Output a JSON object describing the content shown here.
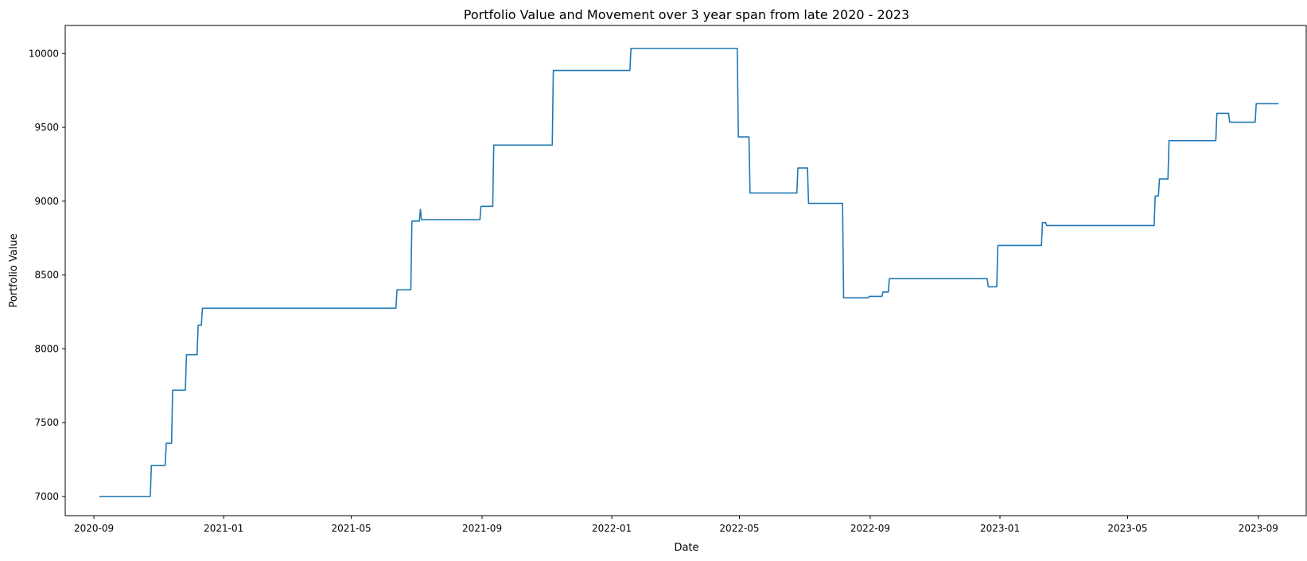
{
  "chart_data": {
    "type": "line",
    "title": "Portfolio Value and Movement over 3 year span from late 2020 - 2023",
    "xlabel": "Date",
    "ylabel": "Portfolio Value",
    "x_axis_type": "date",
    "xlim": [
      "2020-08-05",
      "2023-10-16"
    ],
    "ylim": [
      6870,
      10190
    ],
    "grid": false,
    "line_color": "#1f77b4",
    "x_ticks": [
      {
        "date": "2020-09-01",
        "label": "2020-09"
      },
      {
        "date": "2021-01-01",
        "label": "2021-01"
      },
      {
        "date": "2021-05-01",
        "label": "2021-05"
      },
      {
        "date": "2021-09-01",
        "label": "2021-09"
      },
      {
        "date": "2022-01-01",
        "label": "2022-01"
      },
      {
        "date": "2022-05-01",
        "label": "2022-05"
      },
      {
        "date": "2022-09-01",
        "label": "2022-09"
      },
      {
        "date": "2023-01-01",
        "label": "2023-01"
      },
      {
        "date": "2023-05-01",
        "label": "2023-05"
      },
      {
        "date": "2023-09-01",
        "label": "2023-09"
      }
    ],
    "y_ticks": [
      7000,
      7500,
      8000,
      8500,
      9000,
      9500,
      10000
    ],
    "series": [
      {
        "name": "",
        "points": [
          [
            "2020-09-06",
            7000
          ],
          [
            "2020-10-24",
            7000
          ],
          [
            "2020-10-25",
            7210
          ],
          [
            "2020-11-07",
            7210
          ],
          [
            "2020-11-08",
            7360
          ],
          [
            "2020-11-13",
            7360
          ],
          [
            "2020-11-14",
            7720
          ],
          [
            "2020-11-26",
            7720
          ],
          [
            "2020-11-27",
            7960
          ],
          [
            "2020-12-07",
            7960
          ],
          [
            "2020-12-08",
            8160
          ],
          [
            "2020-12-11",
            8160
          ],
          [
            "2020-12-12",
            8275
          ],
          [
            "2021-06-12",
            8275
          ],
          [
            "2021-06-13",
            8400
          ],
          [
            "2021-06-26",
            8400
          ],
          [
            "2021-06-27",
            8865
          ],
          [
            "2021-07-04",
            8865
          ],
          [
            "2021-07-05",
            8945
          ],
          [
            "2021-07-06",
            8875
          ],
          [
            "2021-08-30",
            8875
          ],
          [
            "2021-08-31",
            8965
          ],
          [
            "2021-09-11",
            8965
          ],
          [
            "2021-09-12",
            9380
          ],
          [
            "2021-11-06",
            9380
          ],
          [
            "2021-11-07",
            9885
          ],
          [
            "2022-01-18",
            9885
          ],
          [
            "2022-01-19",
            10035
          ],
          [
            "2022-04-29",
            10035
          ],
          [
            "2022-04-30",
            9435
          ],
          [
            "2022-05-10",
            9435
          ],
          [
            "2022-05-11",
            9055
          ],
          [
            "2022-06-24",
            9055
          ],
          [
            "2022-06-25",
            9225
          ],
          [
            "2022-07-04",
            9225
          ],
          [
            "2022-07-05",
            8985
          ],
          [
            "2022-08-06",
            8985
          ],
          [
            "2022-08-07",
            8345
          ],
          [
            "2022-08-30",
            8345
          ],
          [
            "2022-08-31",
            8355
          ],
          [
            "2022-09-12",
            8355
          ],
          [
            "2022-09-13",
            8385
          ],
          [
            "2022-09-18",
            8385
          ],
          [
            "2022-09-19",
            8475
          ],
          [
            "2022-12-20",
            8475
          ],
          [
            "2022-12-21",
            8420
          ],
          [
            "2022-12-29",
            8420
          ],
          [
            "2022-12-30",
            8700
          ],
          [
            "2023-02-09",
            8700
          ],
          [
            "2023-02-10",
            8855
          ],
          [
            "2023-02-13",
            8855
          ],
          [
            "2023-02-14",
            8835
          ],
          [
            "2023-05-26",
            8835
          ],
          [
            "2023-05-27",
            9035
          ],
          [
            "2023-05-30",
            9035
          ],
          [
            "2023-05-31",
            9150
          ],
          [
            "2023-06-08",
            9150
          ],
          [
            "2023-06-09",
            9410
          ],
          [
            "2023-07-23",
            9410
          ],
          [
            "2023-07-24",
            9595
          ],
          [
            "2023-08-04",
            9595
          ],
          [
            "2023-08-05",
            9535
          ],
          [
            "2023-08-29",
            9535
          ],
          [
            "2023-08-30",
            9660
          ],
          [
            "2023-09-20",
            9660
          ]
        ]
      }
    ]
  }
}
